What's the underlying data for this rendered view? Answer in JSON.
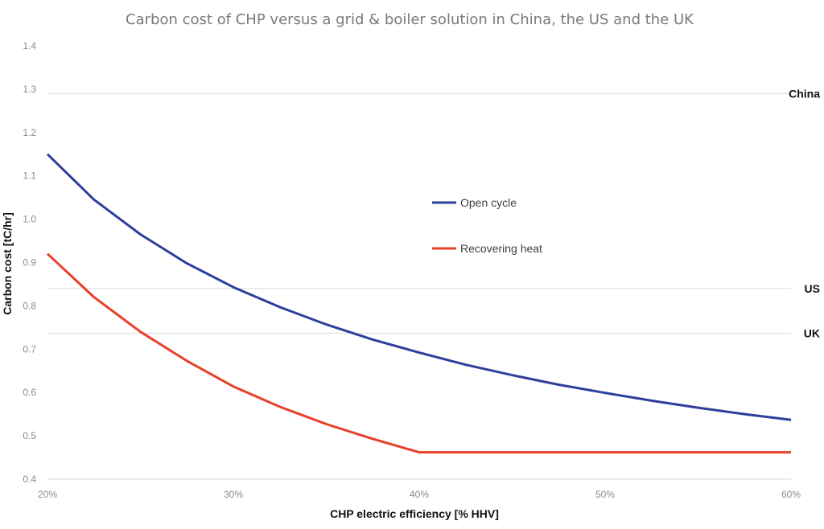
{
  "chart_data": {
    "type": "line",
    "title": "Carbon cost of CHP versus a grid & boiler solution in China, the US and the UK",
    "xlabel": "CHP electric efficiency [% HHV]",
    "ylabel": "Carbon cost [tC/hr]",
    "xlim": [
      0.2,
      0.6
    ],
    "ylim": [
      0.4,
      1.4
    ],
    "x_ticks": [
      "20%",
      "30%",
      "40%",
      "50%",
      "60%"
    ],
    "y_ticks": [
      "0.4",
      "0.5",
      "0.6",
      "0.7",
      "0.8",
      "0.9",
      "1.0",
      "1.1",
      "1.2",
      "1.3",
      "1.4"
    ],
    "x": [
      0.2,
      0.225,
      0.25,
      0.275,
      0.3,
      0.325,
      0.35,
      0.375,
      0.4,
      0.425,
      0.45,
      0.475,
      0.5,
      0.525,
      0.55,
      0.575,
      0.6
    ],
    "series": [
      {
        "name": "Open cycle",
        "color": "#2E3E9A",
        "values": [
          1.15,
          1.045,
          0.965,
          0.898,
          0.843,
          0.797,
          0.757,
          0.722,
          0.692,
          0.664,
          0.64,
          0.618,
          0.599,
          0.581,
          0.565,
          0.55,
          0.537
        ]
      },
      {
        "name": "Recovering heat",
        "color": "#E8402A",
        "values": [
          0.92,
          0.82,
          0.74,
          0.673,
          0.614,
          0.567,
          0.527,
          0.493,
          0.462,
          0.462,
          0.462,
          0.462,
          0.462,
          0.462,
          0.462,
          0.462,
          0.462
        ]
      }
    ],
    "reference_lines": [
      {
        "label": "China",
        "value": 1.29
      },
      {
        "label": "US",
        "value": 0.84
      },
      {
        "label": "UK",
        "value": 0.737
      }
    ],
    "grid": false,
    "legend": "center-right"
  }
}
